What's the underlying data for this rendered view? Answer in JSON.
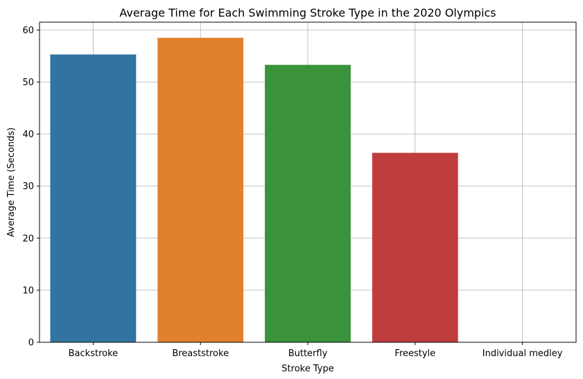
{
  "chart_data": {
    "type": "bar",
    "title": "Average Time for Each Swimming Stroke Type in the 2020 Olympics",
    "xlabel": "Stroke Type",
    "ylabel": "Average Time (Seconds)",
    "categories": [
      "Backstroke",
      "Breaststroke",
      "Butterfly",
      "Freestyle",
      "Individual medley"
    ],
    "values": [
      55.3,
      58.5,
      53.3,
      36.4,
      0
    ],
    "colors": [
      "#3274a1",
      "#e1812c",
      "#3a923a",
      "#c03d3e",
      "#9372b2"
    ],
    "ylim": [
      0,
      61.5
    ],
    "yticks": [
      0,
      10,
      20,
      30,
      40,
      50,
      60
    ],
    "grid": true,
    "legend": "none"
  }
}
